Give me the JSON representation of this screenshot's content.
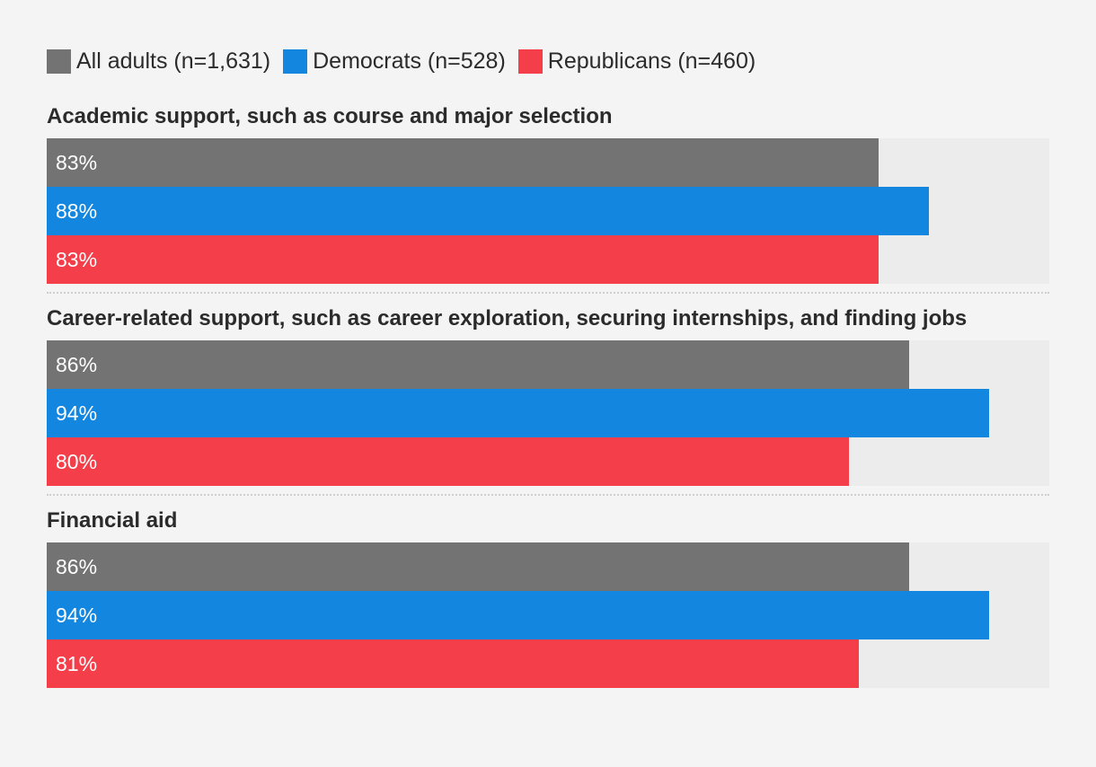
{
  "chart_data": {
    "type": "bar",
    "orientation": "horizontal",
    "xlim": [
      0,
      100
    ],
    "unit": "%",
    "legend_position": "top-left",
    "series": [
      {
        "name": "All adults (n=1,631)",
        "color": "#737373",
        "values": [
          83,
          86,
          86
        ]
      },
      {
        "name": "Democrats (n=528)",
        "color": "#1386e0",
        "values": [
          88,
          94,
          94
        ]
      },
      {
        "name": "Republicans (n=460)",
        "color": "#f43f4b",
        "values": [
          83,
          80,
          81
        ]
      }
    ],
    "categories": [
      "Academic support, such as course and major selection",
      "Career-related support, such as career exploration, securing internships, and finding jobs",
      "Financial aid"
    ],
    "labels": [
      [
        "83%",
        "88%",
        "83%"
      ],
      [
        "86%",
        "94%",
        "80%"
      ],
      [
        "86%",
        "94%",
        "81%"
      ]
    ]
  },
  "colors": {
    "background": "#f4f4f4",
    "track": "#ececec"
  }
}
